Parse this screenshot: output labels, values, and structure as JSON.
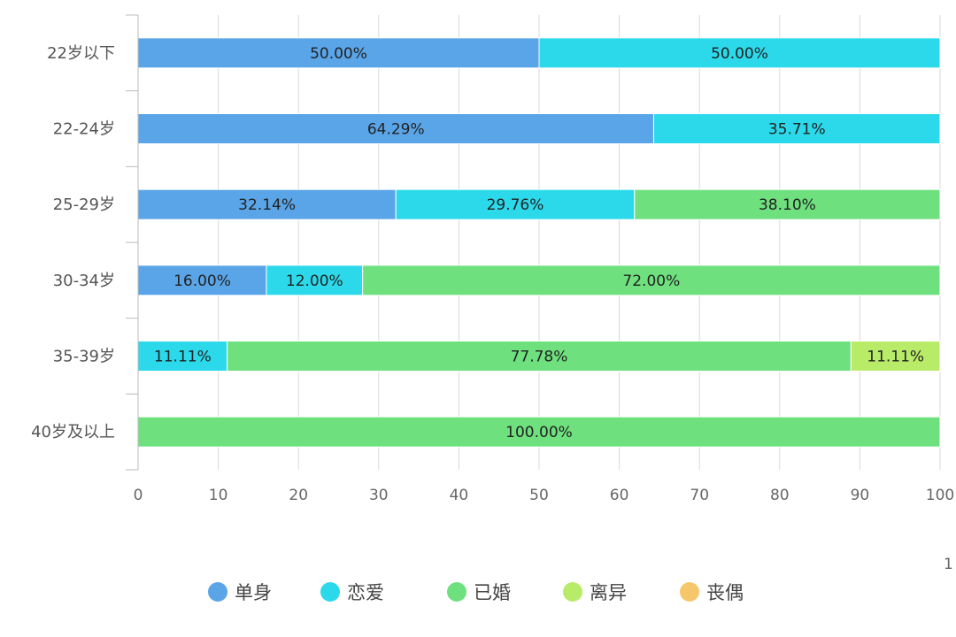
{
  "chart_data": {
    "type": "bar",
    "orientation": "horizontal",
    "stacked": true,
    "categories": [
      "22岁以下",
      "22-24岁",
      "25-29岁",
      "30-34岁",
      "35-39岁",
      "40岁及以上"
    ],
    "series": [
      {
        "name": "单身",
        "color": "#5aa5e8",
        "values": [
          50.0,
          64.29,
          32.14,
          16.0,
          0,
          0
        ]
      },
      {
        "name": "恋爱",
        "color": "#2bd9ea",
        "values": [
          50.0,
          35.71,
          29.76,
          12.0,
          11.11,
          0
        ]
      },
      {
        "name": "已婚",
        "color": "#6ee17e",
        "values": [
          0,
          0,
          38.1,
          72.0,
          77.78,
          100.0
        ]
      },
      {
        "name": "离异",
        "color": "#b8ec68",
        "values": [
          0,
          0,
          0,
          0,
          11.11,
          0
        ]
      },
      {
        "name": "丧偶",
        "color": "#f5c76a",
        "values": [
          0,
          0,
          0,
          0,
          0,
          0
        ]
      }
    ],
    "xlim": [
      0,
      100
    ],
    "xticks": [
      0,
      10,
      20,
      30,
      40,
      50,
      60,
      70,
      80,
      90,
      100
    ],
    "data_label_suffix": "%",
    "grid": "vertical",
    "legend": "bottom",
    "clipped_text": "1"
  }
}
